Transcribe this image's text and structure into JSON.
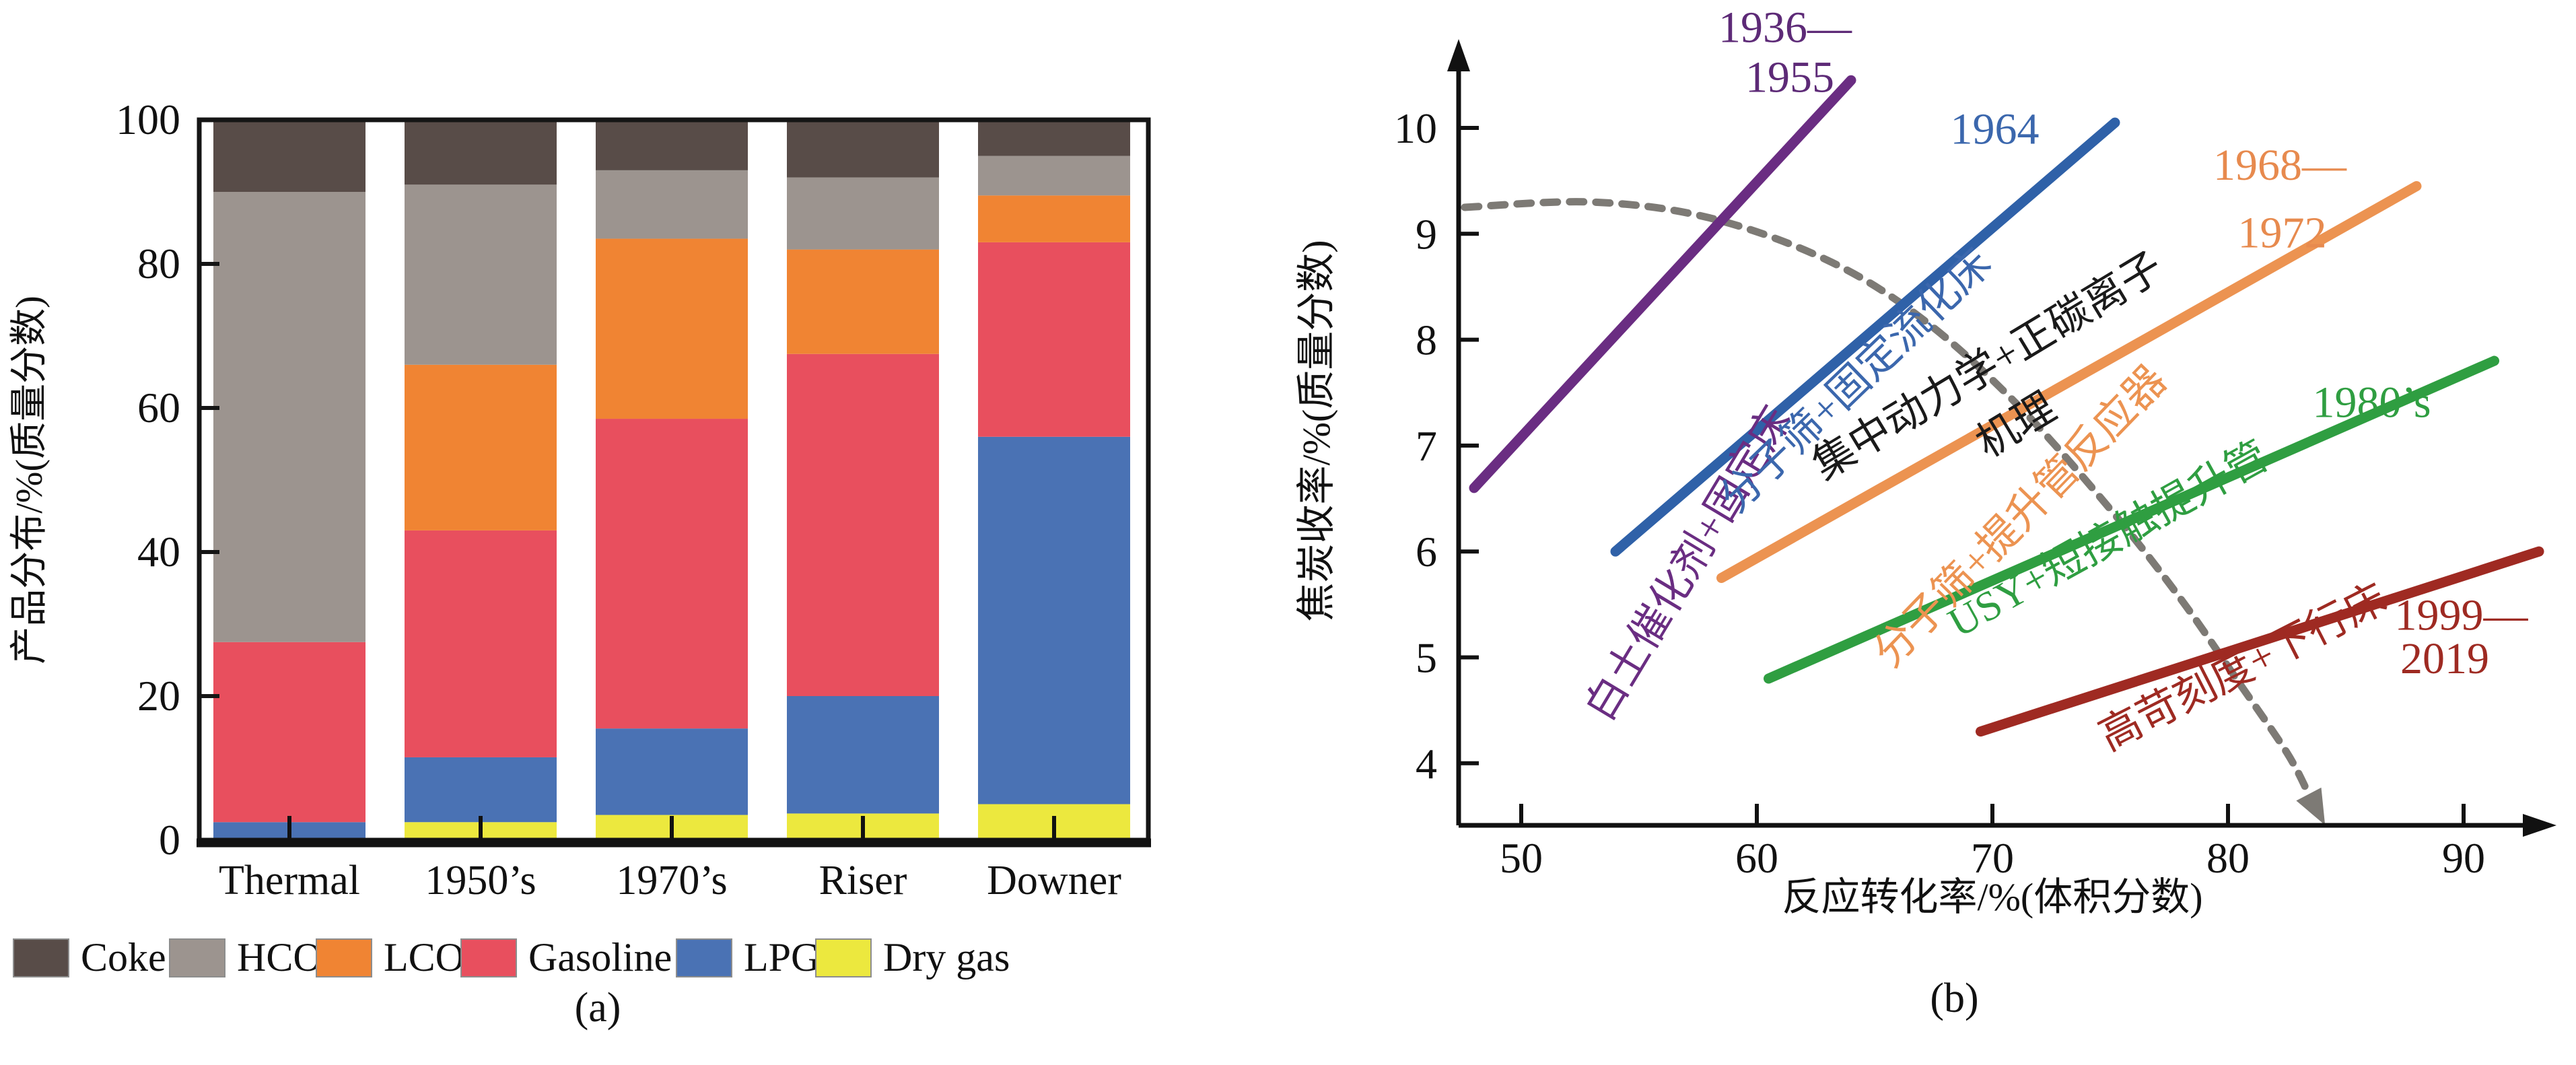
{
  "figure": {
    "background": "#ffffff",
    "panel_a": {
      "caption": "(a)"
    },
    "panel_b": {
      "caption": "(b)"
    }
  },
  "chart_data": [
    {
      "id": "product-distribution",
      "type": "bar",
      "stacked": true,
      "ylabel": "产品分布/%(质量分数)",
      "xlabel": "",
      "ylim": [
        0,
        100
      ],
      "yticks": [
        0,
        20,
        40,
        60,
        80,
        100
      ],
      "categories": [
        "Thermal",
        "1950’s",
        "1970’s",
        "Riser",
        "Downer"
      ],
      "series": [
        {
          "name": "Dry gas",
          "color": "#ece83e",
          "values": [
            0,
            2.5,
            3.5,
            3.7,
            5
          ]
        },
        {
          "name": "LPG",
          "color": "#4a72b4",
          "values": [
            2.5,
            9,
            12,
            16.3,
            51
          ]
        },
        {
          "name": "Gasoline",
          "color": "#e84f5e",
          "values": [
            25,
            31.5,
            43,
            47.5,
            27
          ]
        },
        {
          "name": "LCO",
          "color": "#f08433",
          "values": [
            0,
            23,
            25,
            14.5,
            6.5
          ]
        },
        {
          "name": "HCO",
          "color": "#9c948f",
          "values": [
            62.5,
            25,
            9.5,
            10,
            5.5
          ]
        },
        {
          "name": "Coke",
          "color": "#584c48",
          "values": [
            10,
            9,
            7,
            8,
            5
          ]
        }
      ],
      "legend_order": [
        "Coke",
        "HCO",
        "LCO",
        "Gasoline",
        "LPG",
        "Dry gas"
      ],
      "legend_position": "bottom",
      "grid": false
    },
    {
      "id": "coke-yield-evolution",
      "type": "line",
      "xlabel": "反应转化率/%(体积分数)",
      "ylabel": "焦炭收率/%(质量分数)",
      "xlim": [
        47,
        95.5
      ],
      "ylim": [
        3.3,
        11
      ],
      "xticks": [
        50,
        60,
        70,
        80,
        90
      ],
      "yticks": [
        4,
        5,
        6,
        7,
        8,
        9,
        10
      ],
      "grid": false,
      "lines": [
        {
          "name": "1936—1955",
          "tech": "白土催化剂+固定床",
          "color": "#6a2d82",
          "x": [
            48,
            64
          ],
          "y": [
            6.6,
            10.45
          ]
        },
        {
          "name": "1964",
          "tech": "分子筛+固定流化床",
          "color": "#2f61a8",
          "x": [
            54,
            75.2
          ],
          "y": [
            6.0,
            10.05
          ]
        },
        {
          "name": "1968—1972",
          "tech": "分子筛+提升管反应器",
          "color": "#ec9351",
          "x": [
            58.5,
            88
          ],
          "y": [
            5.75,
            9.45
          ]
        },
        {
          "name": "1980’s",
          "tech": "USY+短接触提升管",
          "color": "#2f9e41",
          "x": [
            60.5,
            91.3
          ],
          "y": [
            4.8,
            7.8
          ]
        },
        {
          "name": "1999—2019",
          "tech": "高苛刻度+下行床",
          "color": "#9f2a22",
          "x": [
            69.5,
            93.2
          ],
          "y": [
            4.3,
            6.0
          ]
        }
      ],
      "dashed_trend": {
        "color": "#7d7a75",
        "points": [
          [
            47.6,
            9.25
          ],
          [
            53,
            9.3
          ],
          [
            58,
            9.15
          ],
          [
            63,
            8.75
          ],
          [
            67,
            8.2
          ],
          [
            71,
            7.4
          ],
          [
            75,
            6.4
          ],
          [
            78,
            5.55
          ],
          [
            80.5,
            4.75
          ],
          [
            82.5,
            4.1
          ],
          [
            83.4,
            3.72
          ]
        ]
      },
      "annotations": [
        {
          "text": "1936—",
          "x": 61.2,
          "y": 10.81,
          "rotate": 0,
          "color": "#5d2a77",
          "size": 66
        },
        {
          "text": "1955",
          "x": 61.4,
          "y": 10.34,
          "rotate": 0,
          "color": "#5d2a77",
          "size": 66
        },
        {
          "text": "1964",
          "x": 70.1,
          "y": 9.85,
          "rotate": 0,
          "color": "#3b67ad",
          "size": 66
        },
        {
          "text": "1968—",
          "x": 82.2,
          "y": 9.51,
          "rotate": 0,
          "color": "#e78a4e",
          "size": 66
        },
        {
          "text": "1972",
          "x": 82.3,
          "y": 8.87,
          "rotate": 0,
          "color": "#e78a4e",
          "size": 66
        },
        {
          "text": "1980’s",
          "x": 86.1,
          "y": 7.27,
          "rotate": 0,
          "color": "#2f9e41",
          "size": 66
        },
        {
          "text": "1999—",
          "x": 89.9,
          "y": 5.26,
          "rotate": 0,
          "color": "#9e2a22",
          "size": 66
        },
        {
          "text": "2019",
          "x": 89.2,
          "y": 4.85,
          "rotate": 0,
          "color": "#9e2a22",
          "size": 66
        },
        {
          "text": "白土催化剂+固定床",
          "x": 57.6,
          "y": 5.82,
          "rotate": -59,
          "color": "#6a2d82",
          "size": 62
        },
        {
          "text": "分子筛+固定流化床",
          "x": 64.6,
          "y": 7.52,
          "rotate": -44,
          "color": "#3b67ad",
          "size": 62
        },
        {
          "text": "集中动力学+正碳离子",
          "x": 70.1,
          "y": 7.64,
          "rotate": -31,
          "color": "#1a1a1a",
          "size": 62
        },
        {
          "text": "机理",
          "x": 71.3,
          "y": 7.08,
          "rotate": -31,
          "color": "#1a1a1a",
          "size": 62
        },
        {
          "text": "分子筛+提升管反应器",
          "x": 71.6,
          "y": 6.24,
          "rotate": -46,
          "color": "#ec9351",
          "size": 62
        },
        {
          "text": "USY+短接触提升管",
          "x": 75.2,
          "y": 6.0,
          "rotate": -29,
          "color": "#2f9e41",
          "size": 62
        },
        {
          "text": "高苛刻度+下行床",
          "x": 80.9,
          "y": 4.79,
          "rotate": -27,
          "color": "#9e2a22",
          "size": 62
        }
      ]
    }
  ]
}
